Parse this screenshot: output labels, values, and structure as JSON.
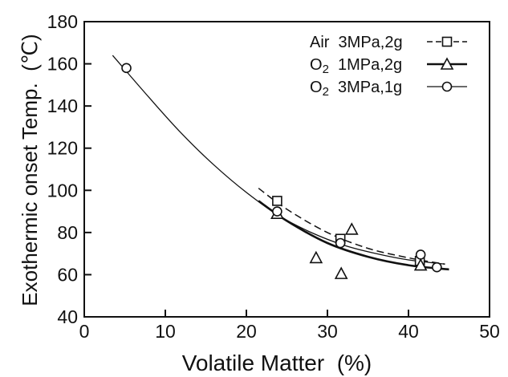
{
  "chart_data": {
    "type": "scatter",
    "xlabel": "Volatile Matter  (%)",
    "ylabel": "Exothermic onset Temp.  (℃)",
    "xlim": [
      0,
      50
    ],
    "ylim": [
      40,
      180
    ],
    "x_ticks": [
      "0",
      "10",
      "20",
      "30",
      "40",
      "50"
    ],
    "y_ticks": [
      "40",
      "60",
      "80",
      "100",
      "120",
      "140",
      "160",
      "180"
    ],
    "x_tick_values": [
      0,
      10,
      20,
      30,
      40,
      50
    ],
    "y_tick_values": [
      40,
      60,
      80,
      100,
      120,
      140,
      160,
      180
    ],
    "grid": false,
    "legend_position": "top-right",
    "series": [
      {
        "name": "Air  3MPa,2g",
        "marker": "square",
        "line": "dashed",
        "points": [
          [
            23.8,
            95
          ],
          [
            31.6,
            77
          ],
          [
            41.4,
            66.5
          ]
        ],
        "fit_curve": [
          [
            21.5,
            101
          ],
          [
            25,
            91
          ],
          [
            30,
            80
          ],
          [
            35,
            72.5
          ],
          [
            40,
            68
          ],
          [
            44.5,
            65
          ]
        ]
      },
      {
        "name": "O2  1MPa,2g",
        "marker": "triangle",
        "line": "solid-thick",
        "points": [
          [
            23.8,
            89
          ],
          [
            28.6,
            68
          ],
          [
            31.7,
            60.5
          ],
          [
            33,
            81.5
          ],
          [
            41.5,
            64.5
          ]
        ],
        "fit_curve": [
          [
            21.5,
            95
          ],
          [
            25,
            85.5
          ],
          [
            30,
            75
          ],
          [
            35,
            68.5
          ],
          [
            40,
            64.5
          ],
          [
            45,
            62.5
          ]
        ]
      },
      {
        "name": "O2  3MPa,1g",
        "marker": "circle",
        "line": "solid",
        "points": [
          [
            5.2,
            158
          ],
          [
            23.8,
            90
          ],
          [
            31.6,
            75
          ],
          [
            41.5,
            69.5
          ],
          [
            43.5,
            63.5
          ]
        ],
        "fit_curve": [
          [
            3.5,
            164
          ],
          [
            8,
            144
          ],
          [
            12,
            127
          ],
          [
            16,
            112
          ],
          [
            20,
            99
          ],
          [
            24,
            88
          ],
          [
            28,
            80
          ],
          [
            32,
            74
          ],
          [
            36,
            70
          ],
          [
            40,
            67
          ],
          [
            44.5,
            65
          ]
        ]
      }
    ]
  }
}
